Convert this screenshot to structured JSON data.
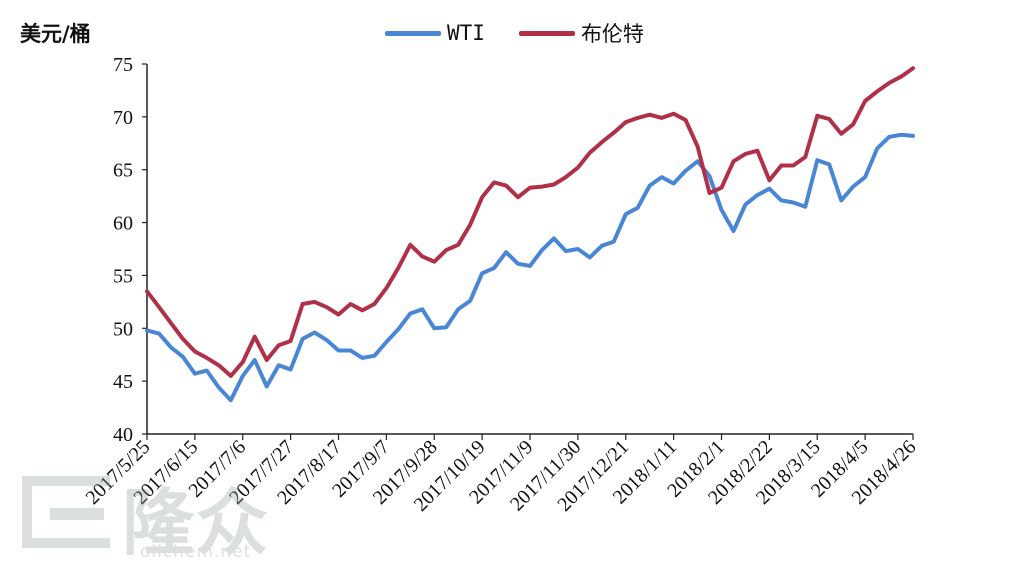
{
  "watermark": {
    "brand": "隆众",
    "url": "oilchem.net"
  },
  "chart_data": {
    "type": "line",
    "ylabel": "美元/桶",
    "ylim": [
      40,
      75
    ],
    "yticks": [
      40,
      45,
      50,
      55,
      60,
      65,
      70,
      75
    ],
    "x_tick_labels": [
      "2017/5/25",
      "2017/6/15",
      "2017/7/6",
      "2017/7/27",
      "2017/8/17",
      "2017/9/7",
      "2017/9/28",
      "2017/10/19",
      "2017/11/9",
      "2017/11/30",
      "2017/12/21",
      "2018/1/11",
      "2018/2/1",
      "2018/2/22",
      "2018/3/15",
      "2018/4/5",
      "2018/4/26"
    ],
    "legend_position": "top-center",
    "grid": false,
    "series": [
      {
        "name": "WTI",
        "color": "#4a86d6",
        "values": [
          49.8,
          49.5,
          48.2,
          47.3,
          45.7,
          46.0,
          44.4,
          43.2,
          45.5,
          47.0,
          44.5,
          46.5,
          46.1,
          49.0,
          49.6,
          48.9,
          47.9,
          47.9,
          47.2,
          47.4,
          48.7,
          49.9,
          51.4,
          51.8,
          50.0,
          50.1,
          51.8,
          52.6,
          55.2,
          55.7,
          57.2,
          56.1,
          55.9,
          57.4,
          58.5,
          57.3,
          57.5,
          56.7,
          57.8,
          58.2,
          60.8,
          61.4,
          63.5,
          64.3,
          63.7,
          64.9,
          65.8,
          64.4,
          61.2,
          59.2,
          61.7,
          62.6,
          63.2,
          62.1,
          61.9,
          61.5,
          65.9,
          65.5,
          62.1,
          63.4,
          64.3,
          67.0,
          68.1,
          68.3,
          68.2
        ]
      },
      {
        "name": "布伦特",
        "color": "#b03048",
        "values": [
          53.5,
          52.0,
          50.5,
          49.0,
          47.8,
          47.2,
          46.5,
          45.5,
          46.8,
          49.2,
          47.0,
          48.4,
          48.8,
          52.3,
          52.5,
          52.0,
          51.3,
          52.3,
          51.7,
          52.3,
          53.8,
          55.7,
          57.9,
          56.8,
          56.3,
          57.4,
          57.9,
          59.8,
          62.4,
          63.8,
          63.5,
          62.4,
          63.3,
          63.4,
          63.6,
          64.3,
          65.2,
          66.6,
          67.6,
          68.5,
          69.5,
          69.9,
          70.2,
          69.9,
          70.3,
          69.7,
          67.2,
          62.8,
          63.3,
          65.8,
          66.5,
          66.8,
          64.0,
          65.4,
          65.4,
          66.2,
          70.1,
          69.8,
          68.4,
          69.3,
          71.5,
          72.4,
          73.2,
          73.8,
          74.6
        ]
      }
    ]
  }
}
